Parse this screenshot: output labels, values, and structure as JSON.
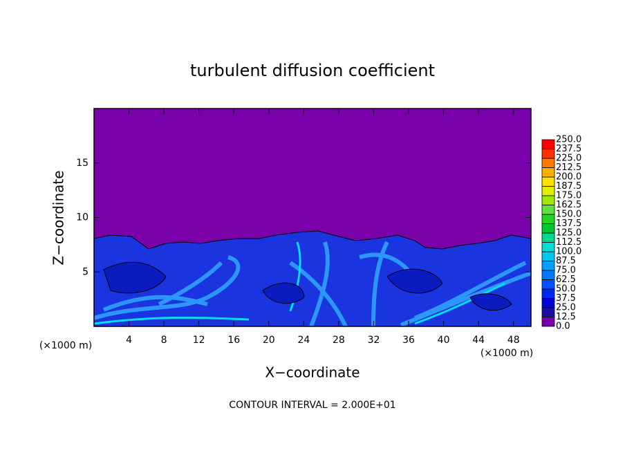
{
  "chart_data": {
    "type": "contour",
    "title": "turbulent diffusion coefficient",
    "xlabel": "X−coordinate",
    "ylabel": "Z−coordinate",
    "x_unit": "(×1000 m)",
    "note": "CONTOUR INTERVAL = 2.000E+01",
    "xlim": [
      0,
      50
    ],
    "ylim": [
      0,
      20
    ],
    "xticks": [
      4,
      8,
      12,
      16,
      20,
      24,
      28,
      32,
      36,
      40,
      44,
      48
    ],
    "yticks": [
      5,
      10,
      15
    ],
    "colorbar": {
      "levels": [
        {
          "value": 0,
          "label": "0.0"
        },
        12.5,
        {
          "value": 25,
          "label": "25.0"
        },
        37.5,
        {
          "value": 50,
          "label": "50.0"
        },
        62.5,
        {
          "value": 75,
          "label": "75.0"
        },
        87.5,
        {
          "value": 100,
          "label": "100.0"
        },
        112.5,
        {
          "value": 125,
          "label": "125.0"
        },
        137.5,
        {
          "value": 150,
          "label": "150.0"
        },
        162.5,
        {
          "value": 175,
          "label": "175.0"
        },
        187.5,
        {
          "value": 200,
          "label": "200.0"
        },
        212.5,
        {
          "value": 225,
          "label": "225.0"
        },
        237.5,
        {
          "value": 250,
          "label": "250.0"
        }
      ],
      "colors": [
        "#7a00aa",
        "#1a10a8",
        "#0000d8",
        "#0028f0",
        "#0050ff",
        "#0078ff",
        "#00a0ff",
        "#00c8f0",
        "#00e0d0",
        "#00d890",
        "#00c830",
        "#20d820",
        "#60e040",
        "#a0e800",
        "#e0f000",
        "#ffe000",
        "#ffb000",
        "#ff7800",
        "#ff3000",
        "#ff0000"
      ]
    }
  }
}
